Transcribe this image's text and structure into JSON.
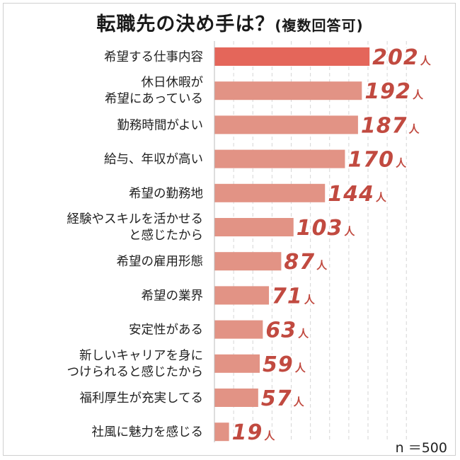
{
  "title": "転職先の決め手は？",
  "subtitle": "(複数回答可)",
  "sample_size": "n ＝500",
  "unit": "人",
  "colors": {
    "highlight": "#e4665a",
    "bar": "#e29385",
    "value_text": "#c14a40",
    "grid": "#d6d6d6"
  },
  "chart_data": {
    "type": "bar",
    "orientation": "horizontal",
    "categories": [
      "希望する仕事内容",
      "休日休暇が\n希望にあっている",
      "勤務時間がよい",
      "給与、年収が高い",
      "希望の勤務地",
      "経験やスキルを活かせる\nと感じたから",
      "希望の雇用形態",
      "希望の業界",
      "安定性がある",
      "新しいキャリアを身に\nつけられると感じたから",
      "福利厚生が充実してる",
      "社風に魅力を感じる"
    ],
    "values": [
      202,
      192,
      187,
      170,
      144,
      103,
      87,
      71,
      63,
      59,
      57,
      19
    ],
    "xlim": [
      0,
      250
    ],
    "grid": true
  }
}
